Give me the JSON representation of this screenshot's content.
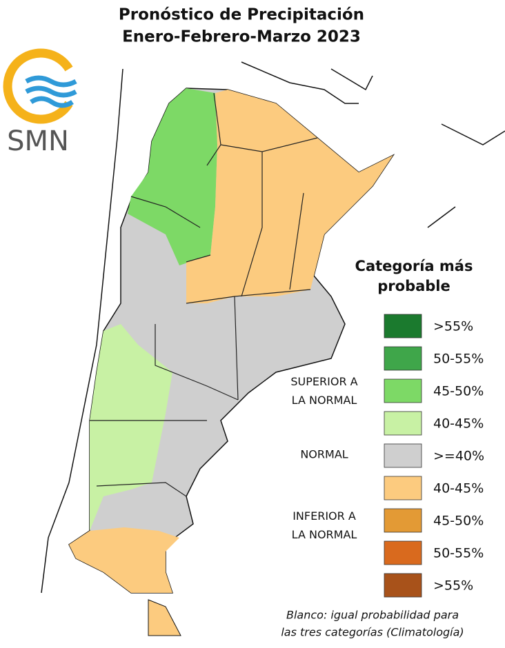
{
  "title": [
    "Pronóstico de Precipitación",
    "Enero-Febrero-Marzo 2023"
  ],
  "logo": "SMN",
  "legend": {
    "title": [
      "Categoría más",
      "probable"
    ],
    "items": [
      {
        "label": ">55%",
        "color": "#1b7a2e"
      },
      {
        "label": "50-55%",
        "color": "#3fa64a"
      },
      {
        "label": "45-50%",
        "color": "#7dd966"
      },
      {
        "label": "40-45%",
        "color": "#c8f1a4"
      },
      {
        "label": ">=40%",
        "color": "#cfcfcf"
      },
      {
        "label": "40-45%",
        "color": "#fccb7f"
      },
      {
        "label": "45-50%",
        "color": "#e39a35"
      },
      {
        "label": "50-55%",
        "color": "#d96a1e"
      },
      {
        "label": ">55%",
        "color": "#a8521a"
      }
    ],
    "groups": [
      [
        "SUPERIOR A",
        "LA NORMAL"
      ],
      [
        "NORMAL"
      ],
      [
        "INFERIOR A",
        "LA NORMAL"
      ]
    ]
  },
  "note": [
    "Blanco: igual probabilidad para",
    "las tres categorías (Climatología)"
  ]
}
